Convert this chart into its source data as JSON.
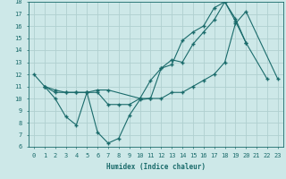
{
  "xlabel": "Humidex (Indice chaleur)",
  "bg_color": "#cde8e8",
  "grid_color": "#b0d0d0",
  "line_color": "#1a6b6b",
  "xlim": [
    -0.5,
    23.5
  ],
  "ylim": [
    6,
    18
  ],
  "xticks": [
    0,
    1,
    2,
    3,
    4,
    5,
    6,
    7,
    8,
    9,
    10,
    11,
    12,
    13,
    14,
    15,
    16,
    17,
    18,
    19,
    20,
    21,
    22,
    23
  ],
  "yticks": [
    6,
    7,
    8,
    9,
    10,
    11,
    12,
    13,
    14,
    15,
    16,
    17,
    18
  ],
  "line1_x": [
    0,
    1,
    2,
    3,
    4,
    5,
    6,
    7,
    8,
    9,
    10,
    11,
    12,
    13,
    14,
    15,
    16,
    17,
    18,
    19,
    20,
    22
  ],
  "line1_y": [
    12,
    11,
    10,
    8.5,
    7.8,
    10.5,
    7.2,
    6.3,
    6.7,
    8.6,
    9.9,
    10.0,
    12.5,
    13.2,
    13.0,
    14.5,
    15.5,
    16.5,
    18.0,
    16.4,
    14.6,
    11.6
  ],
  "line2_x": [
    1,
    2,
    3,
    4,
    5,
    6,
    7,
    8,
    9,
    10,
    11,
    12,
    13,
    14,
    15,
    16,
    17,
    18,
    19,
    20,
    23
  ],
  "line2_y": [
    11.0,
    10.5,
    10.5,
    10.5,
    10.5,
    10.5,
    9.5,
    9.5,
    9.5,
    10.0,
    10.0,
    10.0,
    10.5,
    10.5,
    11.0,
    11.5,
    12.0,
    13.0,
    16.2,
    17.2,
    11.6
  ],
  "line3_x": [
    1,
    2,
    3,
    4,
    5,
    6,
    7,
    10,
    11,
    12,
    13,
    14,
    15,
    16,
    17,
    18,
    19,
    20
  ],
  "line3_y": [
    11.0,
    10.7,
    10.5,
    10.5,
    10.5,
    10.7,
    10.7,
    10.0,
    11.5,
    12.5,
    12.8,
    14.8,
    15.5,
    16.0,
    17.5,
    18.0,
    16.6,
    14.6
  ]
}
